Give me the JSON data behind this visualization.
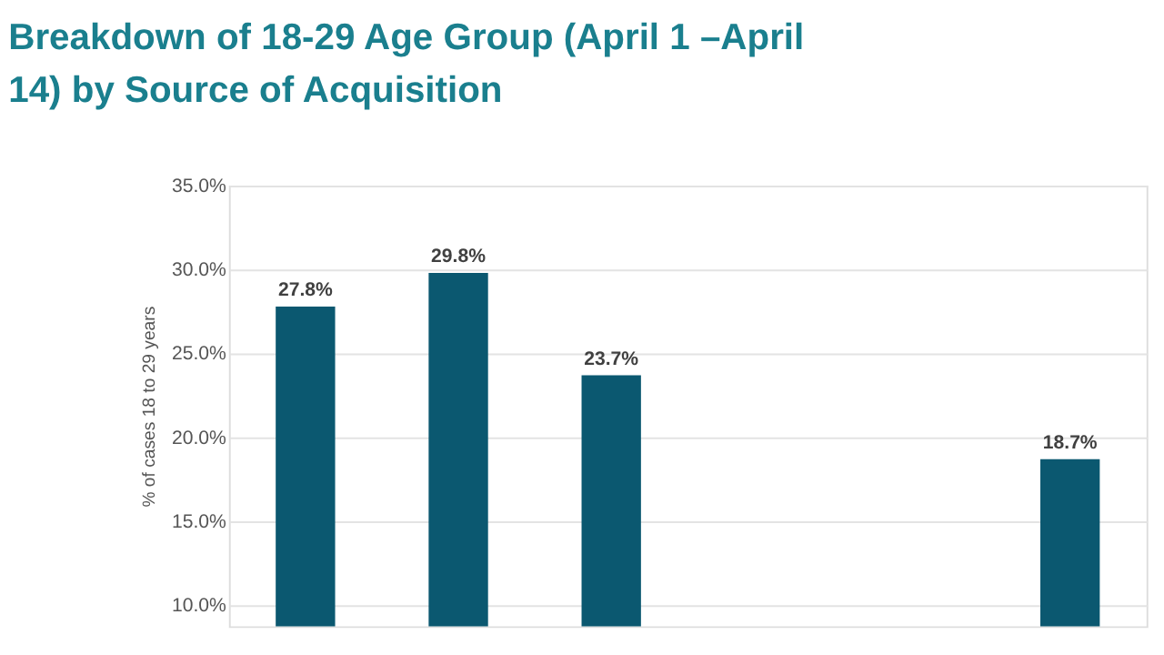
{
  "chart_data": {
    "type": "bar",
    "title": [
      "Breakdown of 18-29 Age Group (April 1 –April",
      "14) by Source of Acquisition"
    ],
    "ylabel": "% of cases 18 to 29 years",
    "categories": [
      null,
      null,
      null,
      null,
      null,
      null
    ],
    "values": [
      27.8,
      29.8,
      23.7,
      null,
      null,
      18.7
    ],
    "value_labels": [
      "27.8%",
      "29.8%",
      "23.7%",
      null,
      null,
      "18.7%"
    ],
    "color": "#0b5870",
    "ylim": [
      8.75,
      35
    ],
    "yticks": [
      {
        "value": 10,
        "label": "10.0%"
      },
      {
        "value": 15,
        "label": "15.0%"
      },
      {
        "value": 20,
        "label": "20.0%"
      },
      {
        "value": 25,
        "label": "25.0%"
      },
      {
        "value": 30,
        "label": "30.0%"
      },
      {
        "value": 35,
        "label": "35.0%"
      }
    ],
    "grid": "y"
  }
}
